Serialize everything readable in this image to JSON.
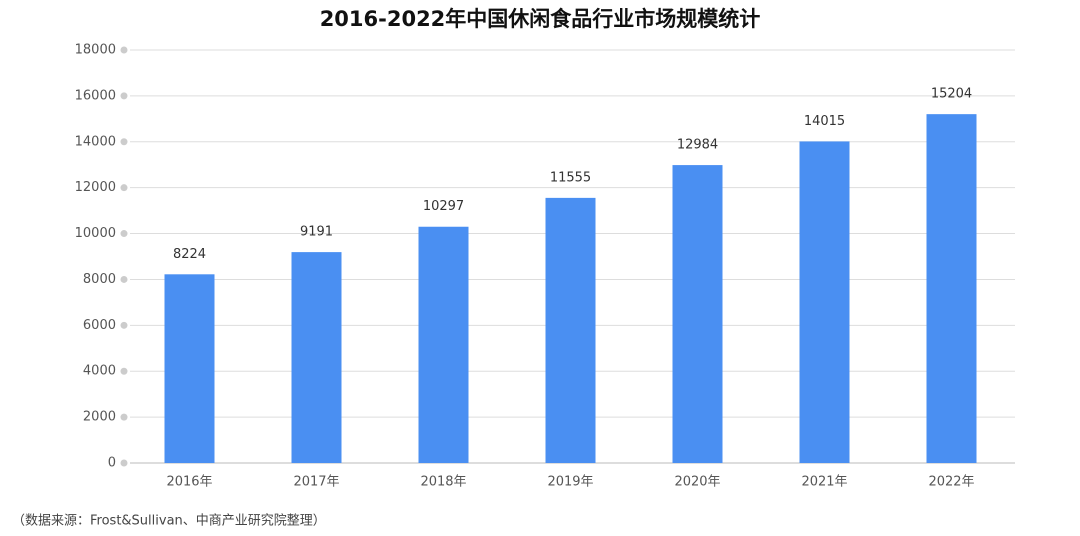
{
  "chart_data": {
    "type": "bar",
    "title": "2016-2022年中国休闲食品行业市场规模统计",
    "categories": [
      "2016年",
      "2017年",
      "2018年",
      "2019年",
      "2020年",
      "2021年",
      "2022年"
    ],
    "values": [
      8224,
      9191,
      10297,
      11555,
      12984,
      14015,
      15204
    ],
    "color": "#4a8ff2",
    "ylim": [
      0,
      18000
    ],
    "yticks": [
      0,
      2000,
      4000,
      6000,
      8000,
      10000,
      12000,
      14000,
      16000,
      18000
    ],
    "grid": true,
    "source": "（数据来源：Frost&Sullivan、中商产业研究院整理）"
  }
}
